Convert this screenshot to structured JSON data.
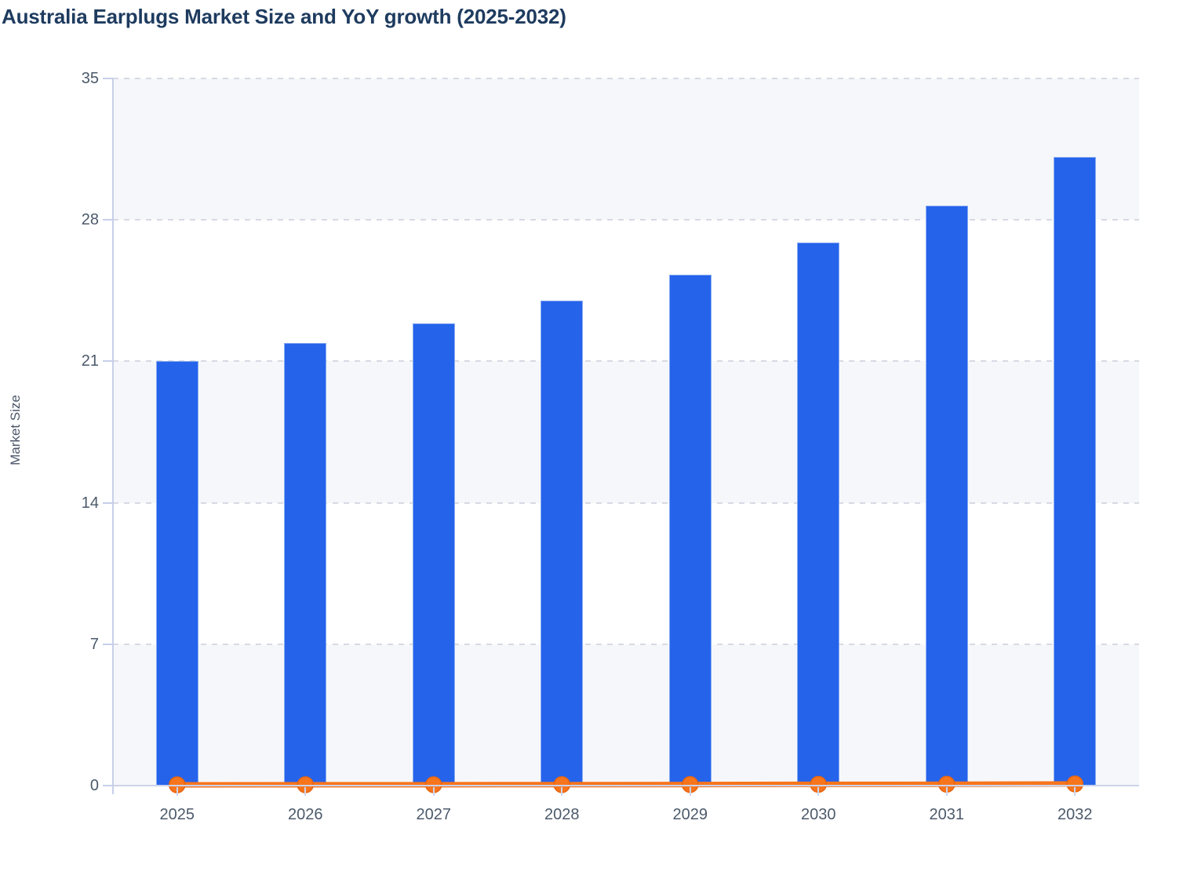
{
  "title": "Australia Earplugs Market Size and YoY growth (2025-2032)",
  "y_axis": {
    "label": "Market Size",
    "ticks": [
      35,
      28,
      21,
      14,
      7,
      0
    ]
  },
  "x_axis": {
    "categories": [
      "2025",
      "2026",
      "2027",
      "2028",
      "2029",
      "2030",
      "2031",
      "2032"
    ]
  },
  "colors": {
    "bar": "#2563eb",
    "bar_stroke": "#9ab9f2",
    "line": "#f7751d",
    "marker_stroke": "#e8650f",
    "band_fill": "#f6f7fa",
    "grid": "#d6dae3",
    "axis": "#c7cfe9",
    "tick_text": "#4c5a6b",
    "title_text": "#1e3b5f"
  },
  "chart_data": {
    "type": "bar",
    "title": "Australia Earplugs Market Size and YoY growth (2025-2032)",
    "xlabel": "",
    "ylabel": "Market Size",
    "ylim": [
      0,
      35
    ],
    "grid": "horizontal-dashed",
    "plot_bands": "alternating horizontal rows (gray/white) between gridlines",
    "legend": "none",
    "categories": [
      "2025",
      "2026",
      "2027",
      "2028",
      "2029",
      "2030",
      "2031",
      "2032"
    ],
    "series": [
      {
        "name": "Market Size",
        "type": "bar",
        "color": "#2563eb",
        "values": [
          21.0,
          21.9,
          22.9,
          24.0,
          25.3,
          26.9,
          28.7,
          31.1
        ]
      },
      {
        "name": "YoY growth",
        "type": "line",
        "color": "#f7751d",
        "values": [
          0.0,
          0.043,
          0.046,
          0.048,
          0.054,
          0.063,
          0.067,
          0.084
        ],
        "note": "plotted on the same 0-35 axis, so the line hugs the zero baseline"
      }
    ]
  }
}
